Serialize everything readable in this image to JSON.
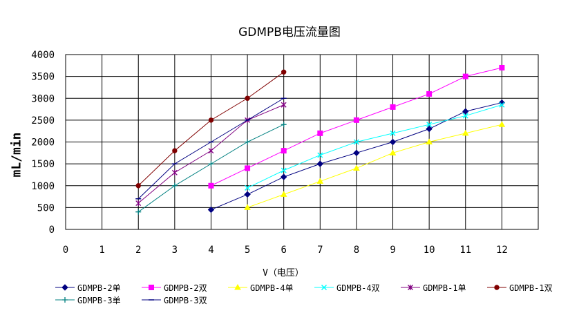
{
  "chart_data": {
    "type": "line",
    "title": "GDMPB电压流量图",
    "xlabel": "V（电压）",
    "ylabel": "mL/min",
    "xlim": [
      0,
      13
    ],
    "ylim": [
      0,
      4000
    ],
    "x_ticks": [
      0,
      1,
      2,
      3,
      4,
      5,
      6,
      7,
      8,
      9,
      10,
      11,
      12
    ],
    "y_ticks": [
      0,
      500,
      1000,
      1500,
      2000,
      2500,
      3000,
      3500,
      4000
    ],
    "grid": true,
    "legend_position": "bottom",
    "series": [
      {
        "name": "GDMPB-2单",
        "color": "#000080",
        "marker": "diamond",
        "x": [
          4,
          5,
          6,
          7,
          8,
          9,
          10,
          11,
          12
        ],
        "y": [
          450,
          800,
          1200,
          1500,
          1750,
          2000,
          2300,
          2700,
          2900
        ]
      },
      {
        "name": "GDMPB-2双",
        "color": "#FF00FF",
        "marker": "square",
        "x": [
          4,
          5,
          6,
          7,
          8,
          9,
          10,
          11,
          12
        ],
        "y": [
          1000,
          1400,
          1800,
          2200,
          2500,
          2800,
          3100,
          3500,
          3700
        ]
      },
      {
        "name": "GDMPB-4单",
        "color": "#FFFF00",
        "marker": "triangle",
        "x": [
          5,
          6,
          7,
          8,
          9,
          10,
          11,
          12
        ],
        "y": [
          500,
          800,
          1100,
          1400,
          1750,
          2000,
          2200,
          2400
        ]
      },
      {
        "name": "GDMPB-4双",
        "color": "#00FFFF",
        "marker": "x",
        "x": [
          5,
          6,
          7,
          8,
          9,
          10,
          11,
          12
        ],
        "y": [
          950,
          1350,
          1700,
          2000,
          2200,
          2400,
          2600,
          2850
        ]
      },
      {
        "name": "GDMPB-1单",
        "color": "#800080",
        "marker": "star",
        "x": [
          2,
          3,
          4,
          5,
          6
        ],
        "y": [
          600,
          1300,
          1800,
          2500,
          2850
        ]
      },
      {
        "name": "GDMPB-1双",
        "color": "#800000",
        "marker": "circle",
        "x": [
          2,
          3,
          4,
          5,
          6
        ],
        "y": [
          1000,
          1800,
          2500,
          3000,
          3600
        ]
      },
      {
        "name": "GDMPB-3单",
        "color": "#008080",
        "marker": "plus",
        "x": [
          2,
          3,
          4,
          5,
          6
        ],
        "y": [
          400,
          1000,
          1500,
          2000,
          2400
        ]
      },
      {
        "name": "GDMPB-3双",
        "color": "#000080",
        "marker": "dash",
        "x": [
          2,
          3,
          4,
          5,
          6
        ],
        "y": [
          700,
          1500,
          2000,
          2500,
          3000
        ]
      }
    ]
  }
}
